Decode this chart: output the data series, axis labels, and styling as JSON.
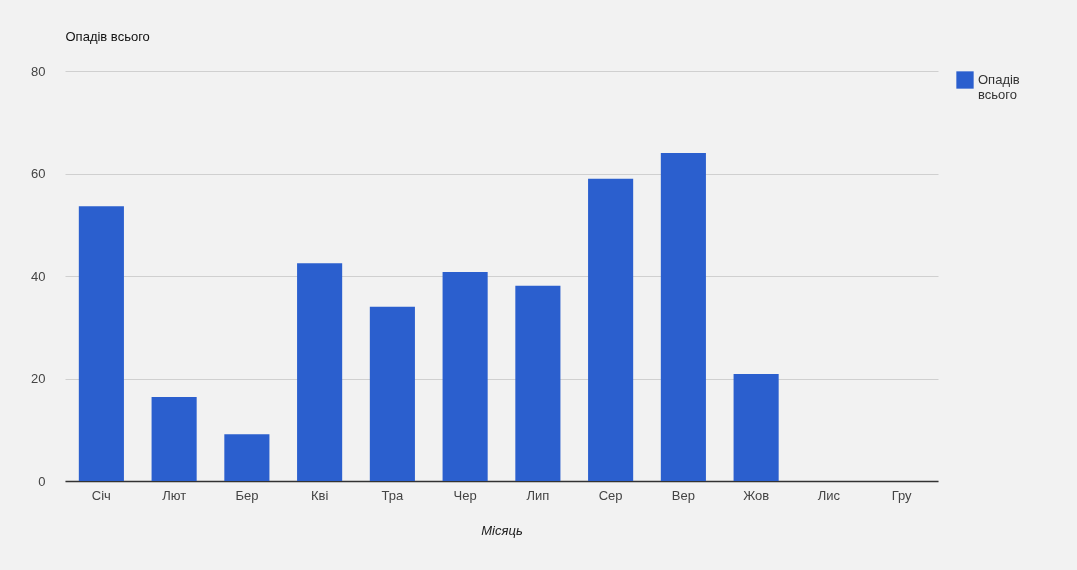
{
  "chart_data": {
    "type": "bar",
    "ylabel": "Опадів всього",
    "xlabel": "Місяць",
    "categories": [
      "Січ",
      "Лют",
      "Бер",
      "Кві",
      "Тра",
      "Чер",
      "Лип",
      "Сер",
      "Вер",
      "Жов",
      "Лис",
      "Гру"
    ],
    "series": [
      {
        "name": "Опадів всього",
        "color": "#2b5fce",
        "values": [
          53.6,
          16.4,
          9.1,
          42.5,
          34.0,
          40.8,
          38.1,
          59.0,
          64.0,
          20.9,
          null,
          null
        ]
      }
    ],
    "ylim": [
      0,
      80
    ],
    "yticks": [
      0,
      20,
      40,
      60,
      80
    ],
    "grid": "y",
    "legend": "top right"
  }
}
